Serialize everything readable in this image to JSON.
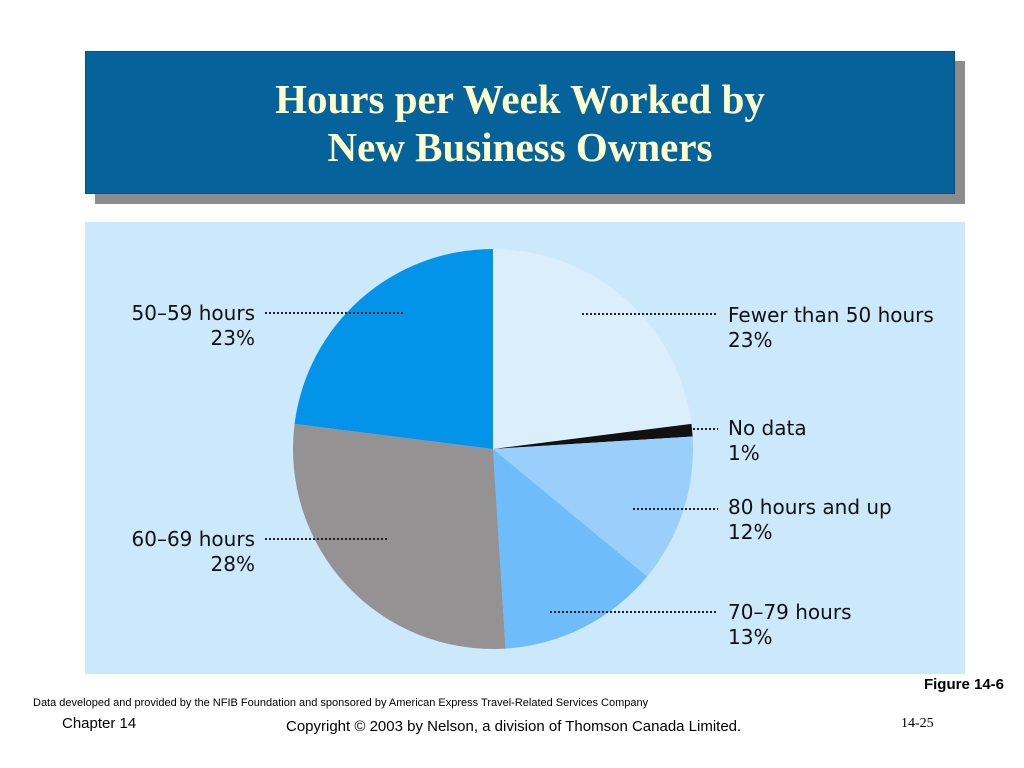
{
  "title": {
    "line1": "Hours per Week Worked by",
    "line2": "New Business Owners"
  },
  "chart_data": {
    "type": "pie",
    "slices": [
      {
        "label": "Fewer than 50 hours",
        "value": 23,
        "value_label": "23%",
        "color": "#daeefc"
      },
      {
        "label": "No data",
        "value": 1,
        "value_label": "1%",
        "color": "#111111"
      },
      {
        "label": "80 hours and up",
        "value": 12,
        "value_label": "12%",
        "color": "#99cffa"
      },
      {
        "label": "70–79 hours",
        "value": 13,
        "value_label": "13%",
        "color": "#6ebcf9"
      },
      {
        "label": "60–69 hours",
        "value": 28,
        "value_label": "28%",
        "color": "#959294"
      },
      {
        "label": "50–59 hours",
        "value": 23,
        "value_label": "23%",
        "color": "#0394ea"
      }
    ],
    "start": "12 o'clock, clockwise",
    "label_style": "leader lines, dotted"
  },
  "colors": {
    "title_bar": "#05629a",
    "title_text": "#ffffcc",
    "chart_background": "#cce8fb"
  },
  "footer": {
    "figure_label": "Figure 14-6",
    "source_note": "Data developed and provided by the NFIB Foundation and sponsored by American Express Travel-Related Services Company",
    "chapter": "Chapter 14",
    "copyright": "Copyright © 2003 by Nelson, a division of Thomson Canada Limited.",
    "page_number": "14-25"
  }
}
